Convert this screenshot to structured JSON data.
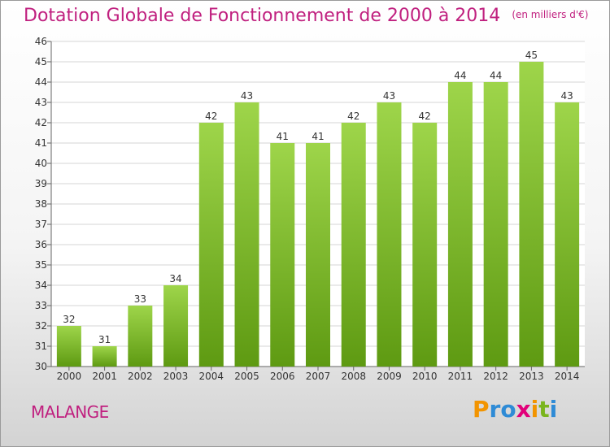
{
  "title": "Dotation Globale de Fonctionnement de 2000 à 2014",
  "subtitle": "(en milliers d'€)",
  "commune": "MALANGE",
  "brand": {
    "letters": [
      "P",
      "r",
      "o",
      "x",
      "i",
      "t",
      "i"
    ],
    "colors": [
      "#f29400",
      "#2e8bd6",
      "#2e8bd6",
      "#e2007a",
      "#f29400",
      "#7ab51d",
      "#2e8bd6"
    ]
  },
  "colors": {
    "bar_light": "#9ed54a",
    "bar_dark": "#5e9a12",
    "title": "#c0207f",
    "grid": "#d5d5d5"
  },
  "chart_data": {
    "type": "bar",
    "title": "Dotation Globale de Fonctionnement de 2000 à 2014",
    "subtitle": "(en milliers d'€)",
    "categories": [
      "2000",
      "2001",
      "2002",
      "2003",
      "2004",
      "2005",
      "2006",
      "2007",
      "2008",
      "2009",
      "2010",
      "2011",
      "2012",
      "2013",
      "2014"
    ],
    "values": [
      32,
      31,
      33,
      34,
      42,
      43,
      41,
      41,
      42,
      43,
      42,
      44,
      44,
      45,
      43
    ],
    "ylim": [
      30,
      46
    ],
    "yticks": [
      30,
      31,
      32,
      33,
      34,
      35,
      36,
      37,
      38,
      39,
      40,
      41,
      42,
      43,
      44,
      45,
      46
    ],
    "grid": true,
    "xlabel": "",
    "ylabel": ""
  }
}
